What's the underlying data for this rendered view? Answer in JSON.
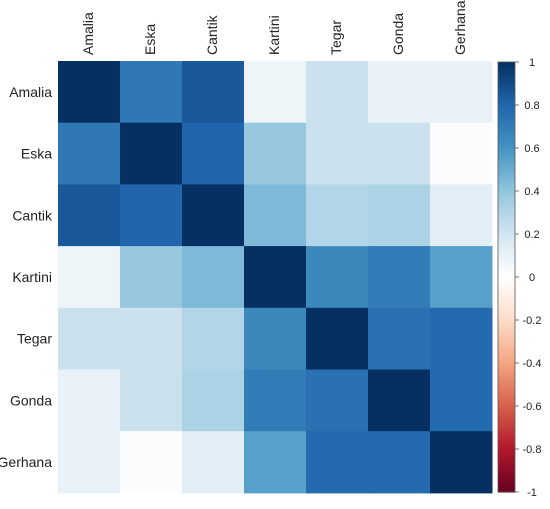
{
  "chart_data": {
    "type": "heatmap",
    "title": "",
    "x_categories": [
      "Amalia",
      "Eska",
      "Cantik",
      "Kartini",
      "Tegar",
      "Gonda",
      "Gerhana"
    ],
    "y_categories": [
      "Amalia",
      "Eska",
      "Cantik",
      "Kartini",
      "Tegar",
      "Gonda",
      "Gerhana"
    ],
    "values": [
      [
        1.0,
        0.72,
        0.85,
        0.08,
        0.22,
        0.1,
        0.1
      ],
      [
        0.72,
        1.0,
        0.8,
        0.38,
        0.22,
        0.22,
        0.02
      ],
      [
        0.85,
        0.8,
        1.0,
        0.45,
        0.3,
        0.32,
        0.12
      ],
      [
        0.08,
        0.38,
        0.45,
        1.0,
        0.65,
        0.7,
        0.55
      ],
      [
        0.22,
        0.22,
        0.3,
        0.65,
        1.0,
        0.75,
        0.78
      ],
      [
        0.1,
        0.22,
        0.32,
        0.7,
        0.75,
        1.0,
        0.78
      ],
      [
        0.1,
        0.02,
        0.12,
        0.55,
        0.78,
        0.78,
        1.0
      ]
    ],
    "color_scale": {
      "min": -1,
      "max": 1,
      "ticks": [
        "1",
        "0.8",
        "0.6",
        "0.4",
        "0.2",
        "0",
        "-0.2",
        "-0.4",
        "-0.6",
        "-0.8",
        "-1"
      ],
      "colors": [
        "#67001f",
        "#b2182b",
        "#d6604d",
        "#f4a582",
        "#fddbc7",
        "#ffffff",
        "#d1e5f0",
        "#92c5de",
        "#4393c3",
        "#2166ac",
        "#053061"
      ]
    },
    "legend_position": "right",
    "grid": false
  }
}
